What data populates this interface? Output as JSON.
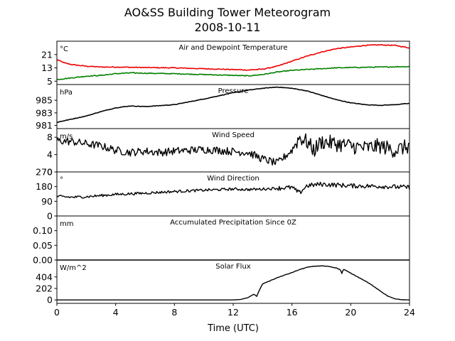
{
  "figure": {
    "title_line1": "AO&SS Building Tower Meteorogram",
    "title_line2": "2008-10-11",
    "xlabel": "Time (UTC)"
  },
  "chart_data": [
    {
      "type": "line",
      "title": "Air and Dewpoint Temperature",
      "unit": "°C",
      "xlim": [
        0,
        24
      ],
      "ylim": [
        3,
        29
      ],
      "yticks": [
        5,
        13,
        21
      ],
      "series": [
        {
          "color": "#ee0000",
          "x": [
            0,
            0.5,
            1,
            2,
            3,
            4,
            6,
            8,
            10,
            12,
            13,
            14,
            15,
            16,
            17,
            18,
            19,
            20,
            21,
            22,
            23,
            24
          ],
          "y": [
            18,
            16,
            15,
            14,
            13.5,
            13.5,
            13.2,
            13,
            12.5,
            12,
            11.7,
            12.2,
            14,
            17,
            20,
            22.5,
            24.5,
            25.5,
            26.5,
            26.8,
            26.5,
            25
          ]
        },
        {
          "color": "#008000",
          "x": [
            0,
            1,
            2,
            3,
            4,
            5,
            6,
            8,
            10,
            12,
            13,
            14,
            15,
            16,
            17,
            18,
            19,
            20,
            22,
            24
          ],
          "y": [
            6,
            7,
            8,
            8.5,
            9.5,
            10,
            9.8,
            9.5,
            9,
            8.5,
            8.2,
            9,
            10.5,
            11.5,
            12,
            12.5,
            13,
            13.2,
            13.5,
            13.8
          ]
        }
      ]
    },
    {
      "type": "line",
      "title": "Pressure",
      "unit": "hPa",
      "xlim": [
        0,
        24
      ],
      "ylim": [
        980.5,
        987.5
      ],
      "yticks": [
        981,
        983,
        985
      ],
      "series": [
        {
          "color": "#000000",
          "x": [
            0,
            1,
            2,
            3,
            4,
            5,
            6,
            8,
            10,
            12,
            13,
            14,
            15,
            16,
            17,
            18,
            19,
            20,
            21,
            22,
            23,
            24
          ],
          "y": [
            981.5,
            982,
            982.5,
            983.2,
            983.8,
            984.1,
            984.0,
            984.3,
            985.2,
            986.2,
            986.6,
            986.9,
            987.1,
            986.9,
            986.5,
            985.8,
            985.1,
            984.6,
            984.3,
            984.2,
            984.3,
            984.5
          ]
        }
      ]
    },
    {
      "type": "line",
      "title": "Wind Speed",
      "unit": "m/s",
      "xlim": [
        0,
        24
      ],
      "ylim": [
        0,
        10
      ],
      "yticks": [
        0,
        4,
        8
      ],
      "series": [
        {
          "color": "#000000",
          "x": [
            0,
            1,
            2,
            3,
            4,
            5,
            6,
            7,
            8,
            9,
            10,
            11,
            12,
            13,
            14,
            15,
            16,
            16.5,
            17,
            17.5,
            18,
            19,
            20,
            21,
            22,
            23,
            24
          ],
          "y": [
            7.2,
            7,
            6.5,
            6,
            5,
            4.5,
            4.8,
            4.5,
            4.8,
            5,
            5.2,
            5,
            4.7,
            4.5,
            3,
            2,
            5,
            8,
            7,
            5,
            7,
            6.5,
            6,
            5.5,
            6,
            5,
            6
          ]
        }
      ]
    },
    {
      "type": "line",
      "title": "Wind Direction",
      "unit": "°",
      "xlim": [
        0,
        24
      ],
      "ylim": [
        0,
        270
      ],
      "yticks": [
        0,
        90,
        180,
        270
      ],
      "series": [
        {
          "color": "#000000",
          "x": [
            0,
            1,
            2,
            3,
            4,
            6,
            8,
            10,
            12,
            13,
            14,
            15,
            16,
            16.5,
            17,
            18,
            19,
            20,
            22,
            24
          ],
          "y": [
            120,
            115,
            118,
            125,
            132,
            140,
            150,
            158,
            165,
            162,
            165,
            170,
            175,
            140,
            185,
            195,
            190,
            185,
            182,
            175
          ]
        }
      ]
    },
    {
      "type": "line",
      "title": "Accumulated Precipitation Since 0Z",
      "unit": "mm",
      "xlim": [
        0,
        24
      ],
      "ylim": [
        0,
        0.15
      ],
      "yticks": [
        0.0,
        0.05,
        0.1
      ],
      "ytick_labels": [
        "0.00",
        "0.05",
        "0.10"
      ],
      "series": [
        {
          "color": "#000000",
          "x": [
            0,
            24
          ],
          "y": [
            0,
            0
          ]
        }
      ]
    },
    {
      "type": "line",
      "title": "Solar Flux",
      "unit": "W/m^2",
      "xlim": [
        0,
        24
      ],
      "ylim": [
        -60,
        700
      ],
      "yticks": [
        0,
        202,
        404
      ],
      "series": [
        {
          "color": "#000000",
          "x": [
            0,
            12,
            12.5,
            13,
            13.4,
            13.6,
            13.8,
            14,
            15,
            16,
            16.5,
            17,
            17.5,
            18,
            18.5,
            19,
            19.3,
            19.4,
            19.5,
            20,
            20.5,
            21,
            21.5,
            22,
            22.5,
            23,
            23.5,
            24
          ],
          "y": [
            0,
            0,
            8,
            40,
            100,
            60,
            180,
            280,
            390,
            480,
            530,
            570,
            590,
            598,
            585,
            560,
            530,
            460,
            540,
            470,
            400,
            330,
            250,
            160,
            70,
            20,
            3,
            0
          ]
        }
      ]
    }
  ]
}
